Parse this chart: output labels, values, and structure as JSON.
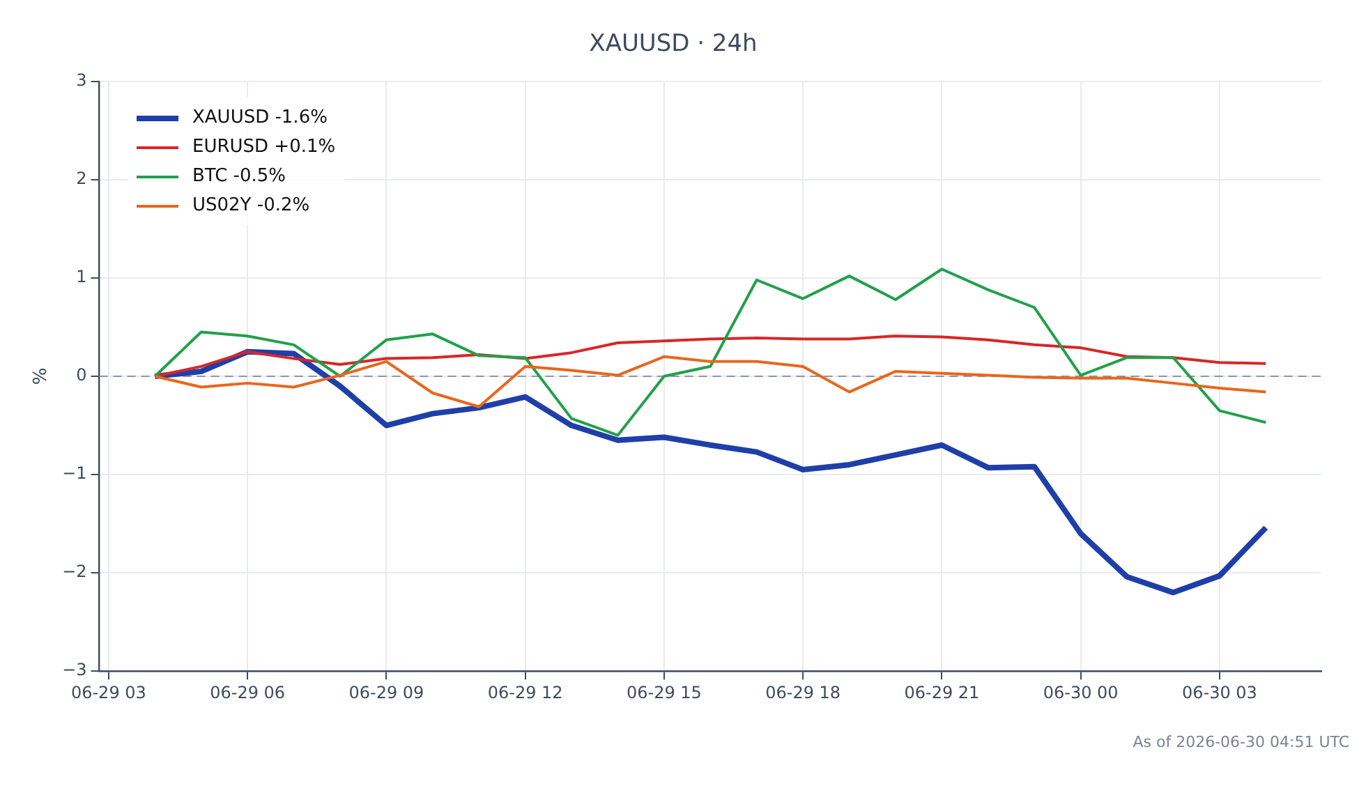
{
  "chart_data": {
    "type": "line",
    "title": "XAUUSD · 24h",
    "ylabel": "%",
    "annotations": [
      "As of 2026-06-30 04:51 UTC"
    ],
    "x": [
      "2026-06-29T04:00",
      "2026-06-29T05:00",
      "2026-06-29T06:00",
      "2026-06-29T07:00",
      "2026-06-29T08:00",
      "2026-06-29T09:00",
      "2026-06-29T10:00",
      "2026-06-29T11:00",
      "2026-06-29T12:00",
      "2026-06-29T13:00",
      "2026-06-29T14:00",
      "2026-06-29T15:00",
      "2026-06-29T16:00",
      "2026-06-29T17:00",
      "2026-06-29T18:00",
      "2026-06-29T19:00",
      "2026-06-29T20:00",
      "2026-06-29T21:00",
      "2026-06-29T22:00",
      "2026-06-29T23:00",
      "2026-06-30T00:00",
      "2026-06-30T01:00",
      "2026-06-30T02:00",
      "2026-06-30T03:00",
      "2026-06-30T04:00"
    ],
    "series": [
      {
        "name": "XAUUSD -1.6%",
        "color": "#1f3fa8",
        "values": [
          0,
          0.05,
          0.25,
          0.23,
          -0.1,
          -0.5,
          -0.38,
          -0.32,
          -0.21,
          -0.5,
          -0.65,
          -0.62,
          -0.7,
          -0.77,
          -0.95,
          -0.9,
          -0.8,
          -0.7,
          -0.93,
          -0.92,
          -1.6,
          -2.04,
          -2.2,
          -2.03,
          -1.54
        ]
      },
      {
        "name": "EURUSD +0.1%",
        "color": "#d62728",
        "values": [
          0,
          0.1,
          0.25,
          0.18,
          0.12,
          0.18,
          0.19,
          0.22,
          0.18,
          0.24,
          0.34,
          0.36,
          0.38,
          0.39,
          0.38,
          0.38,
          0.41,
          0.4,
          0.37,
          0.32,
          0.29,
          0.2,
          0.19,
          0.14,
          0.13
        ]
      },
      {
        "name": "BTC -0.5%",
        "color": "#22a04b",
        "values": [
          0,
          0.45,
          0.41,
          0.32,
          0.0,
          0.37,
          0.43,
          0.21,
          0.19,
          -0.43,
          -0.6,
          0.0,
          0.1,
          0.98,
          0.79,
          1.02,
          0.78,
          1.09,
          0.88,
          0.7,
          0.01,
          0.19,
          0.19,
          -0.35,
          -0.47
        ]
      },
      {
        "name": "US02Y -0.2%",
        "color": "#e8671c",
        "values": [
          0,
          -0.11,
          -0.07,
          -0.11,
          0.01,
          0.15,
          -0.17,
          -0.31,
          0.1,
          0.06,
          0.01,
          0.2,
          0.15,
          0.15,
          0.1,
          -0.16,
          0.05,
          0.03,
          0.01,
          -0.01,
          -0.02,
          -0.02,
          -0.07,
          -0.12,
          -0.16
        ]
      }
    ],
    "xlim": [
      "2026-06-29T02:48",
      "2026-06-30T05:12"
    ],
    "xticks": [
      {
        "value": "2026-06-29T03:00",
        "label": "06-29 03"
      },
      {
        "value": "2026-06-29T06:00",
        "label": "06-29 06"
      },
      {
        "value": "2026-06-29T09:00",
        "label": "06-29 09"
      },
      {
        "value": "2026-06-29T12:00",
        "label": "06-29 12"
      },
      {
        "value": "2026-06-29T15:00",
        "label": "06-29 15"
      },
      {
        "value": "2026-06-29T18:00",
        "label": "06-29 18"
      },
      {
        "value": "2026-06-29T21:00",
        "label": "06-29 21"
      },
      {
        "value": "2026-06-30T00:00",
        "label": "06-30 00"
      },
      {
        "value": "2026-06-30T03:00",
        "label": "06-30 03"
      }
    ],
    "ylim": [
      -3,
      3
    ],
    "yticks": [
      {
        "value": -3,
        "label": "−3"
      },
      {
        "value": -2,
        "label": "−2"
      },
      {
        "value": -1,
        "label": "−1"
      },
      0,
      1,
      2,
      3
    ],
    "ref_lines": [
      {
        "axis": "y",
        "value": 0,
        "label": null,
        "color": "#8a94aa",
        "line_style": "dashed"
      }
    ],
    "grid": true,
    "legend": "top left",
    "marker": "none",
    "line_style": "solid"
  }
}
